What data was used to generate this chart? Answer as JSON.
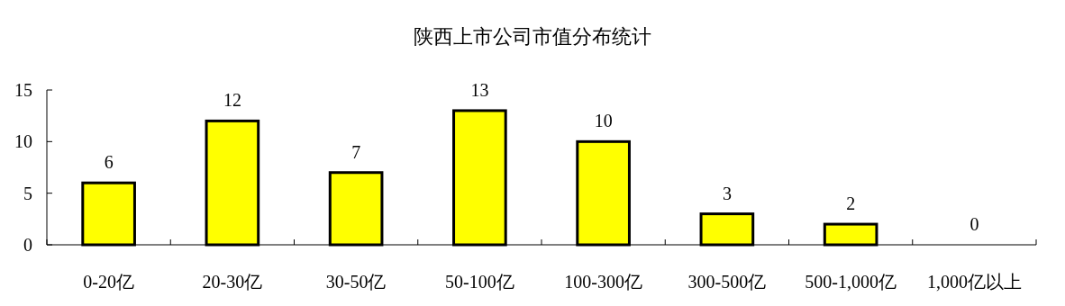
{
  "chart_data": {
    "type": "bar",
    "title": "陕西上市公司市值分布统计",
    "categories": [
      "0-20亿",
      "20-30亿",
      "30-50亿",
      "50-100亿",
      "100-300亿",
      "300-500亿",
      "500-1,000亿",
      "1,000亿以上"
    ],
    "values": [
      6,
      12,
      7,
      13,
      10,
      3,
      2,
      0
    ],
    "color": "#ffff00",
    "ylim": [
      0,
      15
    ],
    "yticks": [
      0,
      5,
      10,
      15
    ],
    "data_labels": true,
    "grid": false
  }
}
